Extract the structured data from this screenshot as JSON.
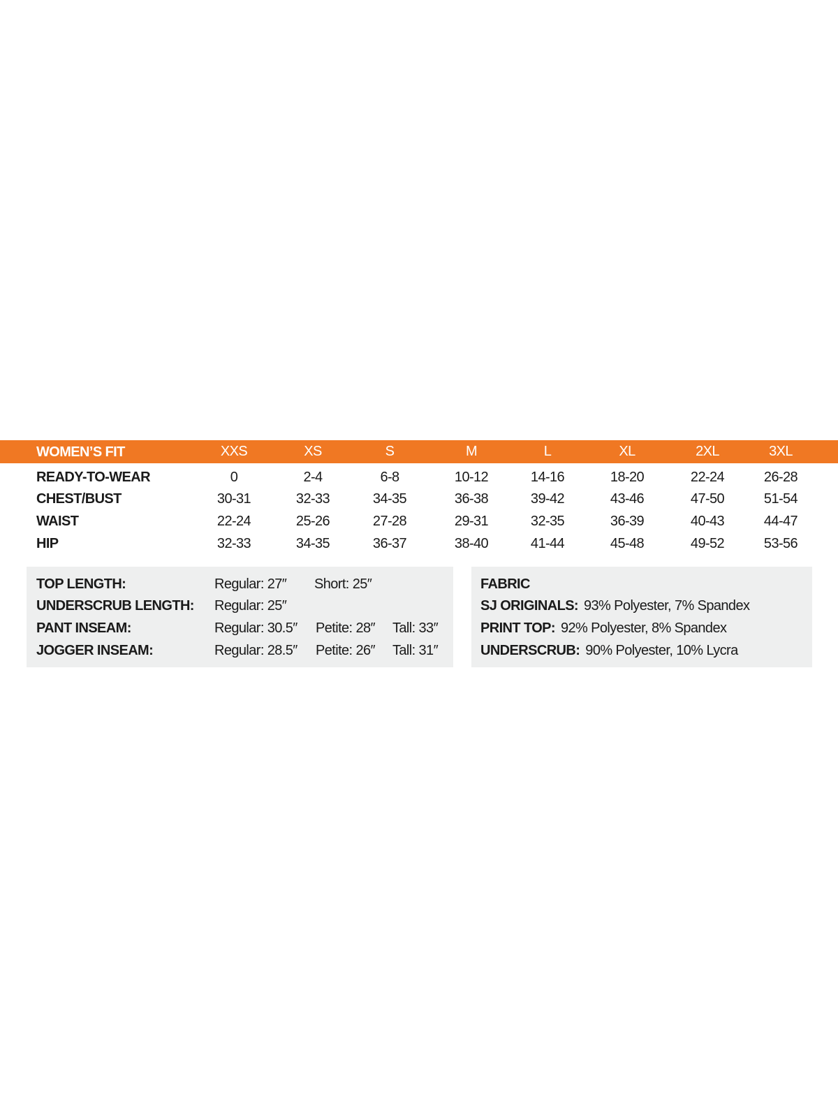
{
  "colors": {
    "header_band": "#f07823",
    "info_box": "#eeefef"
  },
  "size_table": {
    "title": "WOMEN’S FIT",
    "sizes": [
      "XXS",
      "XS",
      "S",
      "M",
      "L",
      "XL",
      "2XL",
      "3XL"
    ],
    "rows": [
      {
        "label": "READY-TO-WEAR",
        "values": [
          "0",
          "2-4",
          "6-8",
          "10-12",
          "14-16",
          "18-20",
          "22-24",
          "26-28"
        ]
      },
      {
        "label": "CHEST/BUST",
        "values": [
          "30-31",
          "32-33",
          "34-35",
          "36-38",
          "39-42",
          "43-46",
          "47-50",
          "51-54"
        ]
      },
      {
        "label": "WAIST",
        "values": [
          "22-24",
          "25-26",
          "27-28",
          "29-31",
          "32-35",
          "36-39",
          "40-43",
          "44-47"
        ]
      },
      {
        "label": "HIP",
        "values": [
          "32-33",
          "34-35",
          "36-37",
          "38-40",
          "41-44",
          "45-48",
          "49-52",
          "53-56"
        ]
      }
    ]
  },
  "lengths": [
    {
      "label": "TOP LENGTH:",
      "values": [
        "Regular: 27″",
        "Short: 25″"
      ]
    },
    {
      "label": "UNDERSCRUB LENGTH:",
      "values": [
        "Regular: 25″"
      ]
    },
    {
      "label": "PANT INSEAM:",
      "values": [
        "Regular: 30.5″",
        "Petite: 28″",
        "Tall: 33″"
      ]
    },
    {
      "label": "JOGGER INSEAM:",
      "values": [
        "Regular: 28.5″",
        "Petite: 26″",
        "Tall: 31″"
      ]
    }
  ],
  "fabric": {
    "title": "FABRIC",
    "items": [
      {
        "label": "SJ ORIGINALS:",
        "value": "93% Polyester,  7% Spandex"
      },
      {
        "label": "PRINT TOP:",
        "value": "92% Polyester,  8% Spandex"
      },
      {
        "label": "UNDERSCRUB:",
        "value": "90% Polyester,  10% Lycra"
      }
    ]
  }
}
